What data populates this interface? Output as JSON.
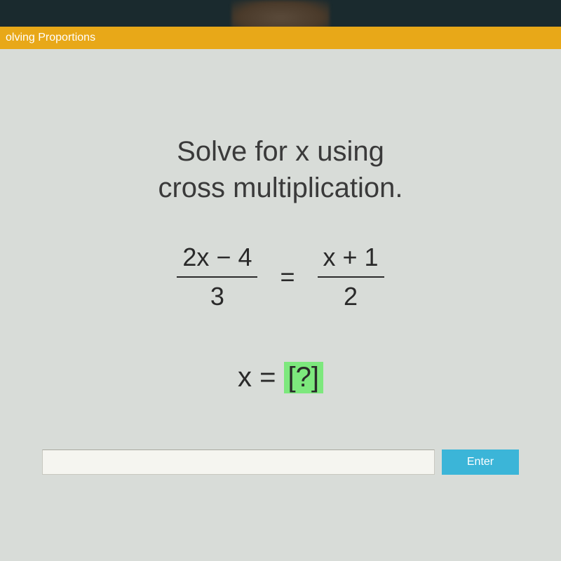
{
  "header": {
    "title": "olving Proportions",
    "background_color": "#e8a818",
    "text_color": "#ffffff"
  },
  "content": {
    "instruction_line1": "Solve for x using",
    "instruction_line2": "cross multiplication.",
    "equation": {
      "left_numerator": "2x − 4",
      "left_denominator": "3",
      "equals": "=",
      "right_numerator": "x + 1",
      "right_denominator": "2"
    },
    "answer": {
      "prefix": "x = ",
      "placeholder": "[?]",
      "box_color": "#7de87d"
    },
    "panel_background": "#d8dcd8"
  },
  "input": {
    "value": "",
    "enter_label": "Enter",
    "button_color": "#3bb5d8"
  }
}
